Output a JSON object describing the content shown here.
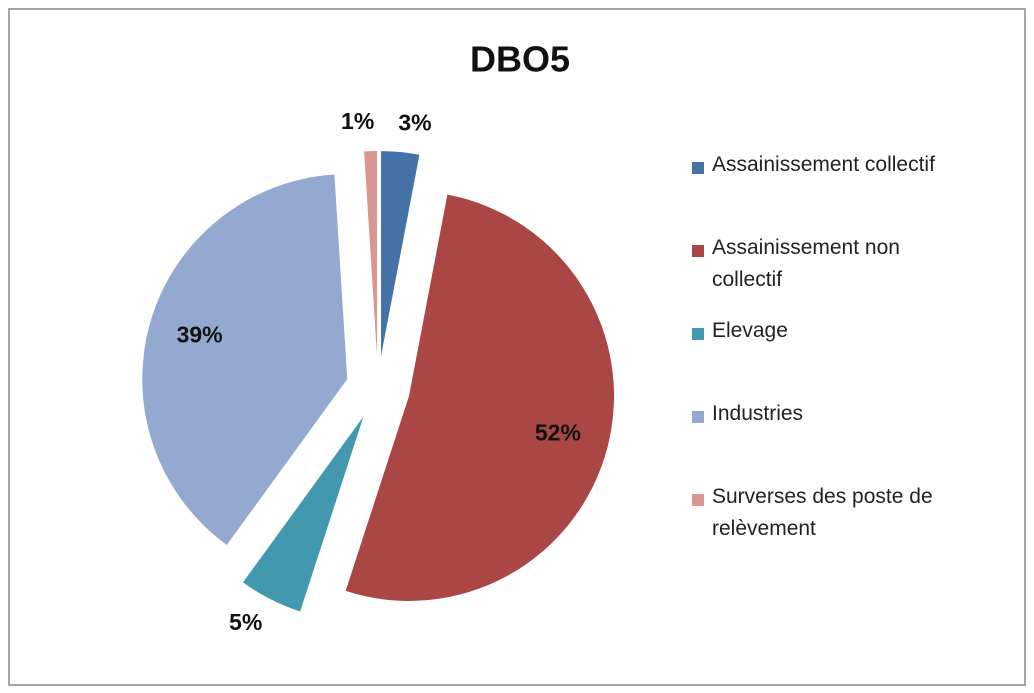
{
  "chart_data": {
    "type": "pie",
    "title": "DBO5",
    "categories": [
      "Assainissement collectif",
      "Assainissement non collectif",
      "Elevage",
      "Industries",
      "Surverses des poste de relèvement"
    ],
    "values": [
      3,
      52,
      5,
      39,
      1
    ],
    "value_labels": [
      "3%",
      "52%",
      "5%",
      "39%",
      "1%"
    ],
    "colors": [
      "#4572a7",
      "#aa4643",
      "#4198af",
      "#93a9cf",
      "#d99694"
    ],
    "legend": "right"
  }
}
